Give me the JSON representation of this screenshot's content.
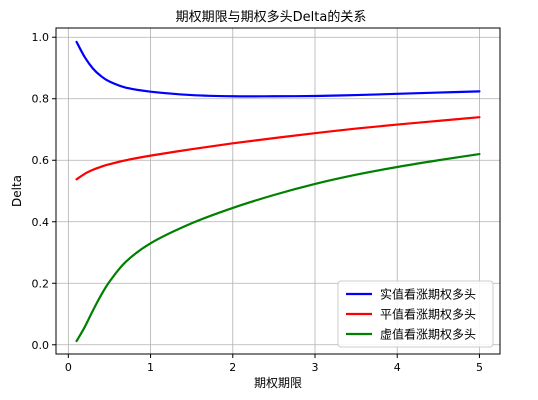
{
  "chart_data": {
    "type": "line",
    "title": "期权期限与期权多头Delta的关系",
    "xlabel": "期权期限",
    "ylabel": "Delta",
    "xlim": [
      -0.15,
      5.25
    ],
    "ylim": [
      -0.03,
      1.03
    ],
    "xticks": [
      0,
      1,
      2,
      3,
      4,
      5
    ],
    "yticks": [
      0.0,
      0.2,
      0.4,
      0.6,
      0.8,
      1.0
    ],
    "xtick_labels": [
      "0",
      "1",
      "2",
      "3",
      "4",
      "5"
    ],
    "ytick_labels": [
      "0.0",
      "0.2",
      "0.4",
      "0.6",
      "0.8",
      "1.0"
    ],
    "grid": true,
    "legend_position": "lower-right",
    "x": [
      0.1,
      0.2,
      0.3,
      0.4,
      0.5,
      0.7,
      1.0,
      1.5,
      2.0,
      2.5,
      3.0,
      3.5,
      4.0,
      4.5,
      5.0
    ],
    "series": [
      {
        "name": "实值看涨期权多头",
        "color": "#0000ff",
        "values": [
          0.985,
          0.935,
          0.898,
          0.873,
          0.856,
          0.836,
          0.823,
          0.812,
          0.808,
          0.808,
          0.809,
          0.812,
          0.816,
          0.82,
          0.824
        ]
      },
      {
        "name": "平值看涨期权多头",
        "color": "#ff0000",
        "values": [
          0.538,
          0.556,
          0.569,
          0.579,
          0.587,
          0.6,
          0.615,
          0.636,
          0.655,
          0.672,
          0.688,
          0.703,
          0.716,
          0.728,
          0.74
        ]
      },
      {
        "name": "虚值看涨期权多头",
        "color": "#008000",
        "values": [
          0.012,
          0.058,
          0.112,
          0.162,
          0.205,
          0.27,
          0.33,
          0.395,
          0.445,
          0.487,
          0.523,
          0.553,
          0.578,
          0.6,
          0.62
        ]
      }
    ]
  }
}
